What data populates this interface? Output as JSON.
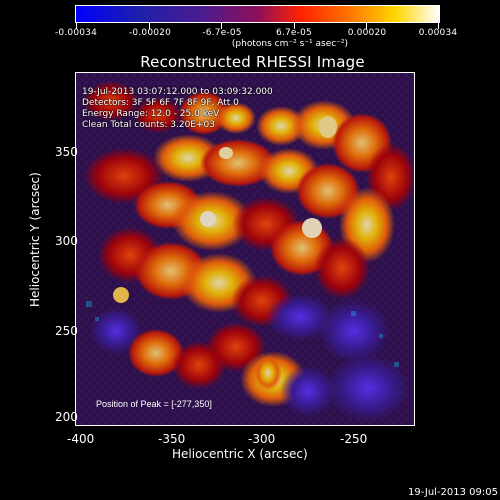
{
  "colorbar": {
    "tick_labels": [
      "-0.00034",
      "-0.00020",
      "-6.7e-05",
      "6.7e-05",
      "0.00020",
      "0.00034"
    ],
    "unit_label": "(photons cm⁻² s⁻¹ asec⁻²)"
  },
  "plot": {
    "title": "Reconstructed RHESSI Image",
    "overlay_lines": [
      "19-Jul-2013 03:07:12.000 to 03:09:32.000",
      "Detectors: 3F 5F 6F 7F 8F 9F, Att 0",
      "Energy Range: 12.0 - 25.0 keV",
      "Clean    Total counts: 3.20E+03"
    ],
    "peak_label": "Position of Peak = [-277,350]",
    "x_axis": {
      "label": "Heliocentric X (arcsec)",
      "ticks": [
        "-400",
        "-350",
        "-300",
        "-250"
      ]
    },
    "y_axis": {
      "label": "Heliocentric Y (arcsec)",
      "ticks": [
        "350",
        "300",
        "250",
        "200"
      ]
    }
  },
  "footer": {
    "timestamp": "19-Jul-2013 09:05"
  }
}
